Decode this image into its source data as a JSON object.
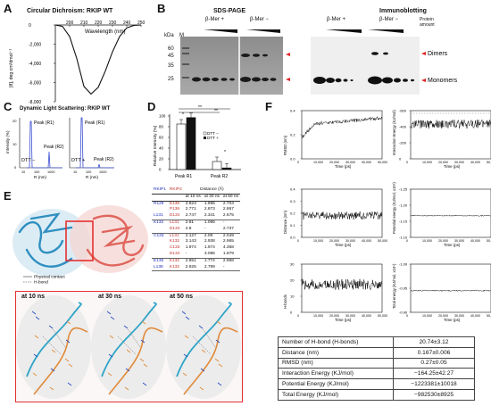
{
  "panels": {
    "a": "A",
    "b": "B",
    "c": "C",
    "d": "D",
    "e": "E",
    "f": "F"
  },
  "panel_a": {
    "title": "Circular Dichroism: RKIP WT",
    "xlabel": "Wavelength (nm)",
    "ylabel": "[θ], deg cm²dmol⁻¹",
    "xticks": [
      "200",
      "210",
      "220",
      "230",
      "240",
      "250"
    ],
    "yticks": [
      "0",
      "-2,000",
      "-4,000",
      "-6,000",
      "-8,000"
    ],
    "chart_data": {
      "type": "line",
      "x": [
        190,
        195,
        200,
        205,
        210,
        215,
        220,
        225,
        230,
        235,
        240,
        245,
        250
      ],
      "y": [
        0,
        -150,
        -1200,
        -3500,
        -6400,
        -7200,
        -6500,
        -4800,
        -2800,
        -1200,
        -300,
        -50,
        0
      ],
      "xlim": [
        190,
        250
      ],
      "ylim": [
        -8000,
        0
      ]
    }
  },
  "panel_b": {
    "sds_title": "SDS-PAGE",
    "ib_title": "Immunoblotting",
    "kda": "kDa",
    "marker": "M",
    "bmer_plus": "β-Mer +",
    "bmer_minus": "β-Mer −",
    "protein_amount": "Protein amount",
    "mw": [
      "60",
      "45",
      "35",
      "25"
    ],
    "dimers": "Dimers",
    "monomers": "Monomers"
  },
  "panel_c": {
    "title": "Dynamic Light Scattering: RKIP WT",
    "ylabel": "Intensity (%)",
    "xlabel": "R (nm)",
    "dtt_minus": "DTT −",
    "dtt_plus": "DTT +",
    "peak_r1": "Peak (R1)",
    "peak_r2": "Peak (R2)",
    "xticks": [
      "10",
      "100",
      "1000"
    ],
    "yticks": [
      "0",
      "10",
      "20"
    ]
  },
  "panel_d": {
    "ylabel": "Relative Intensity (%)",
    "legend_minus": "DTT −",
    "legend_plus": "DTT +",
    "sig1": "**",
    "sig2": "**",
    "sig3": "*",
    "sig4": "*",
    "yticks": [
      "0",
      "20",
      "40",
      "60",
      "80",
      "100"
    ],
    "chart_data": {
      "type": "bar",
      "categories": [
        "Peak R1",
        "Peak R2"
      ],
      "series": [
        {
          "name": "DTT −",
          "values": [
            85,
            15
          ]
        },
        {
          "name": "DTT +",
          "values": [
            97,
            3
          ]
        }
      ],
      "ylim": [
        0,
        100
      ]
    }
  },
  "panel_e": {
    "legend_contact": "Physical contact",
    "legend_hbond": "H-bond",
    "snap_labels": [
      "at 10 ns",
      "at 30 ns",
      "at 50 ns"
    ],
    "table": {
      "h1": "RKIP1",
      "h2": "RKIP2",
      "h3": "Distance (Å)",
      "sub": [
        "at 10 ns",
        "at 30 ns",
        "at 50 ns"
      ],
      "rows": [
        {
          "a": "R129",
          "b": "E135",
          "v": [
            "2.823",
            "1.695",
            "2.704"
          ]
        },
        {
          "a": "",
          "b": "P136",
          "v": [
            "2.771",
            "2.873",
            "2.867"
          ]
        },
        {
          "a": "L131",
          "b": "D134",
          "v": [
            "2.747",
            "2.341",
            "2.675"
          ]
        },
        {
          "a": "K132",
          "b": "L131",
          "v": [
            "2.81",
            "1.095",
            "-"
          ]
        },
        {
          "a": "",
          "b": "D134",
          "v": [
            "2.8",
            "-",
            "2.737"
          ]
        },
        {
          "a": "C133",
          "b": "L131",
          "v": [
            "2.127",
            "2.09",
            "2.049"
          ]
        },
        {
          "a": "",
          "b": "K132",
          "v": [
            "3.143",
            "2.938",
            "2.965"
          ]
        },
        {
          "a": "",
          "b": "C133",
          "v": [
            "1.974",
            "1.974",
            "4.368"
          ]
        },
        {
          "a": "",
          "b": "D134",
          "v": [
            "-",
            "3.086",
            "1.979"
          ]
        },
        {
          "a": "E135",
          "b": "K132",
          "v": [
            "2.851",
            "1.774",
            "2.968"
          ]
        },
        {
          "a": "L138",
          "b": "K132",
          "v": [
            "2.925",
            "2.799",
            "-"
          ]
        }
      ]
    }
  },
  "panel_f": {
    "time_label": "Time (ps)",
    "xticks": [
      "0",
      "10,000",
      "20,000",
      "30,000",
      "40,000",
      "50,000"
    ],
    "rmsd": {
      "ylabel": "RMSD (nm)",
      "yticks": [
        "0.0",
        "0.2",
        "0.4"
      ]
    },
    "ie": {
      "ylabel": "Interaction Energy (KJ/mol)",
      "yticks": [
        "0",
        "-200",
        "-400",
        "-600"
      ]
    },
    "dist": {
      "ylabel": "Distance (nm)",
      "yticks": [
        "0.0",
        "0.1",
        "0.2",
        "0.3",
        "0.4"
      ]
    },
    "pe": {
      "ylabel": "Potential energy (KJ/mol, x10⁶)",
      "yticks": [
        "-1.10",
        "-1.15",
        "-1.20",
        "-1.25"
      ]
    },
    "hb": {
      "ylabel": "H-bonds",
      "yticks": [
        "0",
        "10",
        "20",
        "30"
      ]
    },
    "te": {
      "ylabel": "Total energy (KJ/mol, x10⁶)",
      "yticks": [
        "-0.90",
        "-0.95",
        "-1.00"
      ]
    },
    "summary": [
      {
        "k": "Number of H-bond (H-bonds)",
        "v": "20.74±3.12"
      },
      {
        "k": "Distance (nm)",
        "v": "0.167±0.006"
      },
      {
        "k": "RMSD (nm)",
        "v": "0.27±0.05"
      },
      {
        "k": "Interaction Energy (KJ/mol)",
        "v": "−164.25±42.27"
      },
      {
        "k": "Potential Energy (KJ/mol)",
        "v": "−1223381±10018"
      },
      {
        "k": "Total Energy (KJ/mol)",
        "v": "−982530±8925"
      }
    ]
  }
}
